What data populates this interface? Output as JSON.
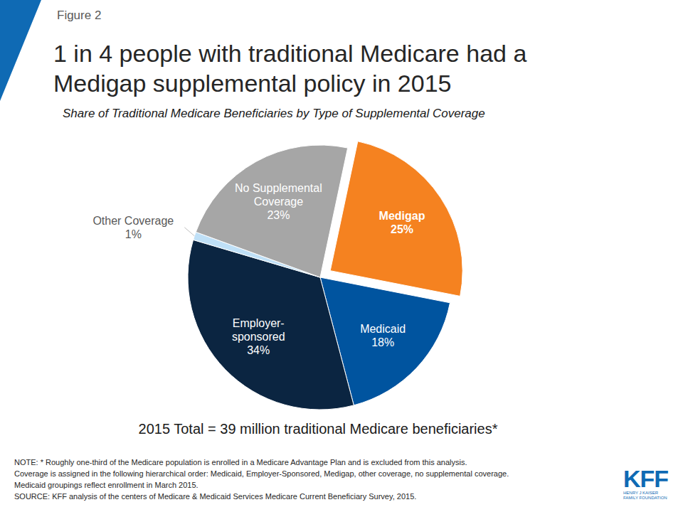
{
  "chart_data": {
    "type": "pie",
    "figure_label": "Figure 2",
    "title": "1 in 4 people with traditional Medicare had a Medigap supplemental policy in 2015",
    "subtitle": "Share of Traditional Medicare Beneficiaries by Type of Supplemental Coverage",
    "categories": [
      "Medigap",
      "Medicaid",
      "Employer-sponsored",
      "Other Coverage",
      "No Supplemental Coverage"
    ],
    "values": [
      25,
      18,
      34,
      1,
      23
    ],
    "value_labels": [
      "25%",
      "18%",
      "34%",
      "1%",
      "23%"
    ],
    "colors": [
      "#f58220",
      "#00549f",
      "#0b2541",
      "#bfe0f7",
      "#a6a6a6"
    ],
    "data_labels": true,
    "legend": false,
    "total_label": "2015 Total = 39 million traditional Medicare beneficiaries*",
    "notes": [
      "NOTE: * Roughly one-third of the Medicare population is enrolled in a Medicare Advantage Plan and is excluded from this analysis.",
      "Coverage is assigned in the following hierarchical order: Medicaid, Employer-Sponsored, Medigap, other coverage, no supplemental coverage.",
      "Medicaid groupings reflect enrollment in March 2015."
    ],
    "source": "SOURCE: KFF analysis of the centers of Medicare & Medicaid Services Medicare Current Beneficiary Survey, 2015.",
    "logo": {
      "text": "KFF",
      "subtitle": "HENRY J KAISER FAMILY FOUNDATION"
    }
  }
}
